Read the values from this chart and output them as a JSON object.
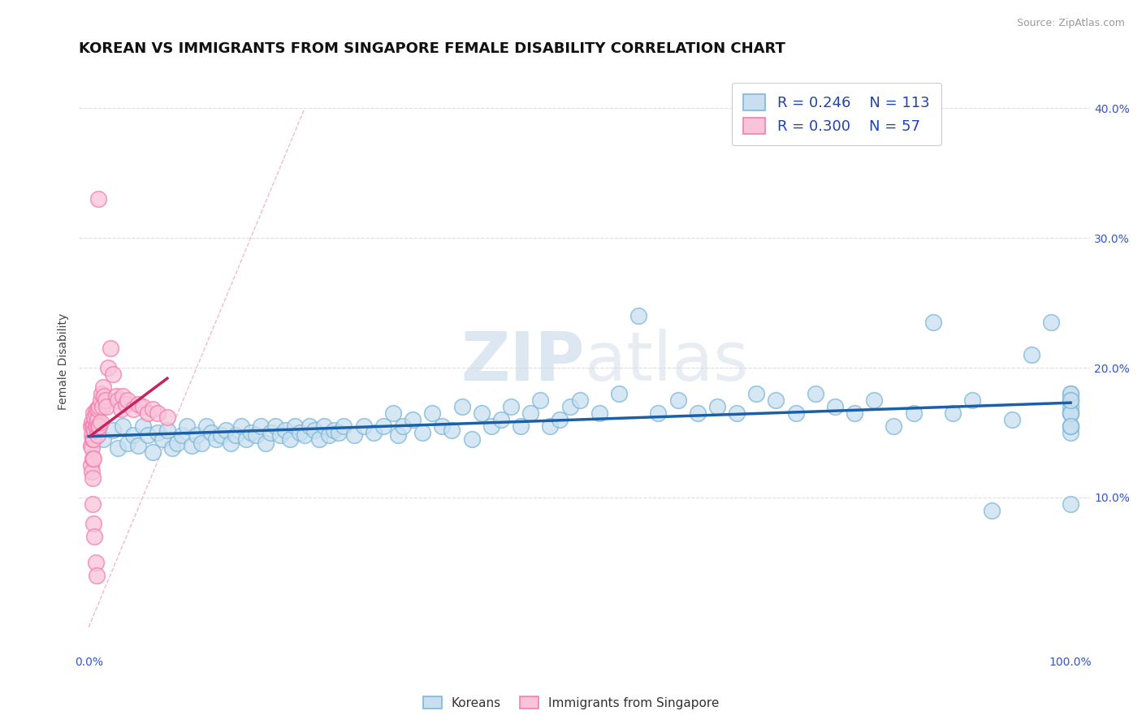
{
  "title": "KOREAN VS IMMIGRANTS FROM SINGAPORE FEMALE DISABILITY CORRELATION CHART",
  "source": "Source: ZipAtlas.com",
  "ylabel": "Female Disability",
  "xlim": [
    -0.01,
    1.02
  ],
  "ylim": [
    -0.02,
    0.43
  ],
  "x_ticks": [
    0.0,
    1.0
  ],
  "x_tick_labels": [
    "0.0%",
    "100.0%"
  ],
  "y_ticks": [
    0.0,
    0.1,
    0.2,
    0.3,
    0.4
  ],
  "y_tick_labels_right": [
    "",
    "10.0%",
    "20.0%",
    "30.0%",
    "40.0%"
  ],
  "legend_r1": "0.246",
  "legend_n1": "113",
  "legend_r2": "0.300",
  "legend_n2": "57",
  "blue_color": "#7ab8d9",
  "blue_fill": "#c9dff0",
  "pink_color": "#f47eb0",
  "pink_fill": "#f9c4d8",
  "line_blue": "#1a5fa8",
  "line_pink": "#c8245c",
  "ref_line_color": "#e8a0b8",
  "watermark_color": "#d5e5f0",
  "blue_x": [
    0.015,
    0.025,
    0.03,
    0.035,
    0.04,
    0.045,
    0.05,
    0.055,
    0.06,
    0.065,
    0.07,
    0.075,
    0.08,
    0.085,
    0.09,
    0.095,
    0.1,
    0.105,
    0.11,
    0.115,
    0.12,
    0.125,
    0.13,
    0.135,
    0.14,
    0.145,
    0.15,
    0.155,
    0.16,
    0.165,
    0.17,
    0.175,
    0.18,
    0.185,
    0.19,
    0.195,
    0.2,
    0.205,
    0.21,
    0.215,
    0.22,
    0.225,
    0.23,
    0.235,
    0.24,
    0.245,
    0.25,
    0.255,
    0.26,
    0.27,
    0.28,
    0.29,
    0.3,
    0.31,
    0.315,
    0.32,
    0.33,
    0.34,
    0.35,
    0.36,
    0.37,
    0.38,
    0.39,
    0.4,
    0.41,
    0.42,
    0.43,
    0.44,
    0.45,
    0.46,
    0.47,
    0.48,
    0.49,
    0.5,
    0.52,
    0.54,
    0.56,
    0.58,
    0.6,
    0.62,
    0.64,
    0.66,
    0.68,
    0.7,
    0.72,
    0.74,
    0.76,
    0.78,
    0.8,
    0.82,
    0.84,
    0.86,
    0.88,
    0.9,
    0.92,
    0.94,
    0.96,
    0.98,
    1.0,
    1.0,
    1.0,
    1.0,
    1.0,
    1.0,
    1.0,
    1.0,
    1.0,
    1.0,
    1.0,
    1.0,
    1.0,
    1.0,
    1.0
  ],
  "blue_y": [
    0.145,
    0.152,
    0.138,
    0.155,
    0.142,
    0.148,
    0.14,
    0.155,
    0.148,
    0.135,
    0.15,
    0.145,
    0.152,
    0.138,
    0.142,
    0.148,
    0.155,
    0.14,
    0.148,
    0.142,
    0.155,
    0.15,
    0.145,
    0.148,
    0.152,
    0.142,
    0.148,
    0.155,
    0.145,
    0.15,
    0.148,
    0.155,
    0.142,
    0.15,
    0.155,
    0.148,
    0.152,
    0.145,
    0.155,
    0.15,
    0.148,
    0.155,
    0.152,
    0.145,
    0.155,
    0.148,
    0.152,
    0.15,
    0.155,
    0.148,
    0.155,
    0.15,
    0.155,
    0.165,
    0.148,
    0.155,
    0.16,
    0.15,
    0.165,
    0.155,
    0.152,
    0.17,
    0.145,
    0.165,
    0.155,
    0.16,
    0.17,
    0.155,
    0.165,
    0.175,
    0.155,
    0.16,
    0.17,
    0.175,
    0.165,
    0.18,
    0.24,
    0.165,
    0.175,
    0.165,
    0.17,
    0.165,
    0.18,
    0.175,
    0.165,
    0.18,
    0.17,
    0.165,
    0.175,
    0.155,
    0.165,
    0.235,
    0.165,
    0.175,
    0.09,
    0.16,
    0.21,
    0.235,
    0.165,
    0.18,
    0.155,
    0.17,
    0.165,
    0.175,
    0.15,
    0.165,
    0.175,
    0.155,
    0.095,
    0.165,
    0.18,
    0.175,
    0.155
  ],
  "pink_x": [
    0.002,
    0.002,
    0.002,
    0.003,
    0.003,
    0.003,
    0.003,
    0.004,
    0.004,
    0.004,
    0.004,
    0.004,
    0.005,
    0.005,
    0.005,
    0.005,
    0.005,
    0.006,
    0.006,
    0.006,
    0.007,
    0.007,
    0.007,
    0.008,
    0.008,
    0.008,
    0.009,
    0.009,
    0.01,
    0.01,
    0.01,
    0.011,
    0.011,
    0.012,
    0.012,
    0.013,
    0.014,
    0.015,
    0.016,
    0.017,
    0.018,
    0.02,
    0.022,
    0.025,
    0.028,
    0.03,
    0.033,
    0.035,
    0.038,
    0.04,
    0.045,
    0.05,
    0.055,
    0.06,
    0.065,
    0.07,
    0.08
  ],
  "pink_y": [
    0.155,
    0.14,
    0.125,
    0.158,
    0.148,
    0.138,
    0.12,
    0.155,
    0.145,
    0.13,
    0.115,
    0.095,
    0.165,
    0.155,
    0.145,
    0.13,
    0.08,
    0.162,
    0.152,
    0.07,
    0.165,
    0.155,
    0.05,
    0.168,
    0.155,
    0.04,
    0.16,
    0.148,
    0.33,
    0.168,
    0.155,
    0.17,
    0.155,
    0.175,
    0.158,
    0.18,
    0.17,
    0.185,
    0.178,
    0.175,
    0.17,
    0.2,
    0.215,
    0.195,
    0.178,
    0.175,
    0.168,
    0.178,
    0.172,
    0.175,
    0.168,
    0.172,
    0.17,
    0.165,
    0.168,
    0.165,
    0.162
  ],
  "title_fontsize": 13,
  "axis_label_fontsize": 10,
  "tick_fontsize": 10
}
